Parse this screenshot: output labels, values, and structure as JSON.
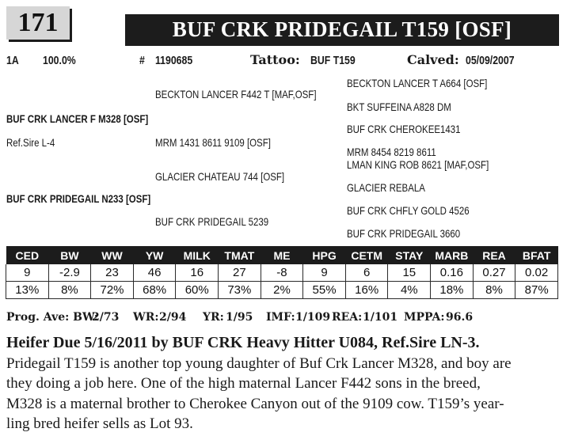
{
  "header": {
    "lot_number": "171",
    "animal_name": "BUF CRK  PRIDEGAIL T159 [OSF]"
  },
  "info": {
    "code": "1A",
    "percent": "100.0%",
    "reg_label": "#",
    "reg_number": "1190685",
    "tattoo_label": "Tattoo:",
    "tattoo": "BUF T159",
    "calved_label": "Calved:",
    "calved": "05/09/2007"
  },
  "pedigree": {
    "sire": "BUF CRK LANCER F M328 [OSF]",
    "sire_ref": "Ref.Sire L-4",
    "sire_sire": "BECKTON LANCER F442 T [MAF,OSF]",
    "sire_dam": "MRM 1431 8611 9109  [OSF]",
    "sss": "BECKTON LANCER T A664 [OSF]",
    "ssd": "BKT SUFFEINA A828 DM",
    "sds": "BUF CRK CHEROKEE1431",
    "sdd": "MRM 8454 8219 8611",
    "dam": "BUF CRK PRIDEGAIL N233 [OSF]",
    "dam_sire": "GLACIER CHATEAU 744 [OSF]",
    "dam_dam": "BUF CRK PRIDEGAIL 5239",
    "dss": "LMAN KING ROB 8621  [MAF,OSF]",
    "dsd": "GLACIER REBALA",
    "dds": "BUF CRK CHFLY GOLD 4526",
    "ddd": "BUF CRK PRIDEGAIL 3660"
  },
  "epd": {
    "headers": [
      "CED",
      "BW",
      "WW",
      "YW",
      "MILK",
      "TMAT",
      "ME",
      "HPG",
      "CETM",
      "STAY",
      "MARB",
      "REA",
      "BFAT"
    ],
    "values": [
      "9",
      "-2.9",
      "23",
      "46",
      "16",
      "27",
      "-8",
      "9",
      "6",
      "15",
      "0.16",
      "0.27",
      "0.02"
    ],
    "percentiles": [
      "13%",
      "8%",
      "72%",
      "68%",
      "60%",
      "73%",
      "2%",
      "55%",
      "16%",
      "4%",
      "18%",
      "8%",
      "87%"
    ]
  },
  "progeny": {
    "label": "Prog. Ave: BW:",
    "bw": "2/73",
    "wr_label": "WR:",
    "wr": "2/94",
    "yr_label": "YR:",
    "yr": "1/95",
    "imf_label": "IMF:",
    "imf": "1/109",
    "rea_label": "REA:",
    "rea": "1/101",
    "mppa_label": "MPPA:",
    "mppa": "96.6"
  },
  "heifer_line": "Heifer Due 5/16/2011 by BUF CRK Heavy Hitter U084, Ref.Sire LN-3.",
  "description": [
    "Pridegail T159 is another top young daughter of Buf Crk Lancer M328, and boy are",
    "they doing a job here.  One of the high maternal Lancer F442 sons in the breed,",
    "M328 is a maternal brother to Cherokee Canyon out of the 9109 cow.  T159’s year-",
    "ling bred heifer sells as Lot 93."
  ]
}
